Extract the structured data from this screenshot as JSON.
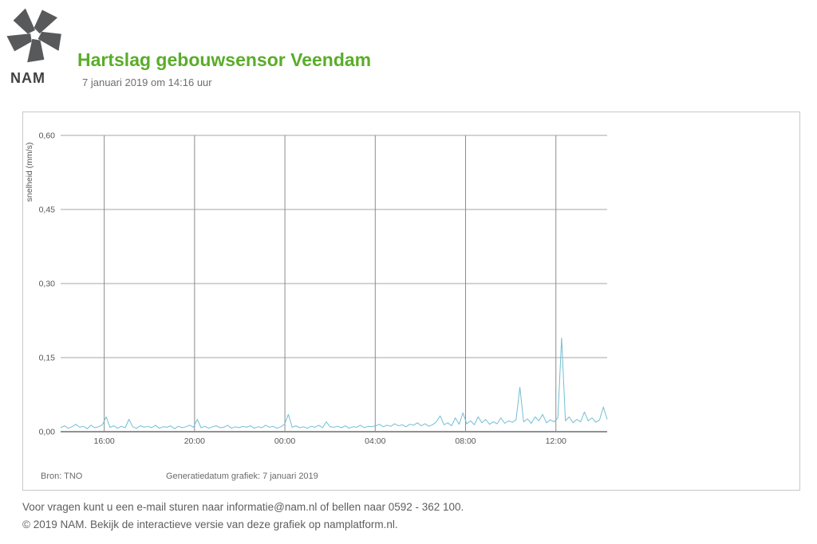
{
  "header": {
    "logo_text": "NAM",
    "title": "Hartslag gebouwsensor Veendam",
    "subtitle": "7 januari 2019 om 14:16 uur"
  },
  "chart_footer": {
    "source": "Bron: TNO",
    "generated": "Generatiedatum grafiek: 7 januari 2019"
  },
  "page_footer": {
    "line1": "Voor vragen kunt u een e-mail sturen naar informatie@nam.nl of bellen naar 0592 - 362 100.",
    "line2": "© 2019 NAM. Bekijk de interactieve versie van deze grafiek op namplatform.nl."
  },
  "colors": {
    "accent_green": "#5aad29",
    "line": "#72bfd4",
    "grid_horizontal": "#a6a6a6",
    "grid_vertical": "#8c8c8c",
    "axis": "#6e6e6e",
    "tick_text": "#555555",
    "logo_gray": "#58595b"
  },
  "chart_data": {
    "type": "line",
    "title": "",
    "xlabel": "",
    "ylabel": "snelheid (mm/s)",
    "ylim": [
      0,
      0.6
    ],
    "yticks": [
      0.0,
      0.15,
      0.3,
      0.45,
      0.6
    ],
    "ytick_labels": [
      "0,00",
      "0,15",
      "0,30",
      "0,45",
      "0,60"
    ],
    "grid": true,
    "legend": "none",
    "x_start": 0,
    "x_end": 24.2,
    "x_unit": "hours",
    "xticks": [
      {
        "pos": 1.93,
        "label": "16:00"
      },
      {
        "pos": 5.93,
        "label": "20:00"
      },
      {
        "pos": 9.93,
        "label": "00:00"
      },
      {
        "pos": 13.93,
        "label": "04:00"
      },
      {
        "pos": 17.93,
        "label": "08:00"
      },
      {
        "pos": 21.93,
        "label": "12:00"
      }
    ],
    "series": [
      {
        "name": "snelheid",
        "color": "#72bfd4",
        "values": [
          0.008,
          0.012,
          0.007,
          0.01,
          0.015,
          0.009,
          0.011,
          0.006,
          0.013,
          0.008,
          0.01,
          0.014,
          0.03,
          0.009,
          0.012,
          0.007,
          0.011,
          0.008,
          0.025,
          0.01,
          0.007,
          0.012,
          0.009,
          0.011,
          0.008,
          0.013,
          0.007,
          0.01,
          0.009,
          0.012,
          0.006,
          0.011,
          0.008,
          0.01,
          0.013,
          0.009,
          0.025,
          0.008,
          0.011,
          0.007,
          0.01,
          0.012,
          0.008,
          0.009,
          0.013,
          0.007,
          0.01,
          0.008,
          0.011,
          0.009,
          0.012,
          0.007,
          0.01,
          0.008,
          0.013,
          0.009,
          0.011,
          0.007,
          0.01,
          0.015,
          0.035,
          0.009,
          0.012,
          0.008,
          0.01,
          0.007,
          0.011,
          0.009,
          0.013,
          0.008,
          0.02,
          0.01,
          0.009,
          0.011,
          0.008,
          0.012,
          0.007,
          0.01,
          0.009,
          0.013,
          0.008,
          0.011,
          0.01,
          0.012,
          0.015,
          0.01,
          0.013,
          0.011,
          0.016,
          0.012,
          0.014,
          0.01,
          0.015,
          0.013,
          0.018,
          0.012,
          0.016,
          0.011,
          0.014,
          0.02,
          0.032,
          0.014,
          0.018,
          0.012,
          0.028,
          0.015,
          0.038,
          0.016,
          0.022,
          0.014,
          0.03,
          0.018,
          0.025,
          0.015,
          0.02,
          0.016,
          0.028,
          0.017,
          0.022,
          0.019,
          0.024,
          0.09,
          0.02,
          0.026,
          0.017,
          0.03,
          0.022,
          0.035,
          0.018,
          0.024,
          0.02,
          0.028,
          0.19,
          0.022,
          0.03,
          0.018,
          0.025,
          0.02,
          0.04,
          0.022,
          0.028,
          0.019,
          0.024,
          0.05,
          0.025
        ]
      }
    ],
    "annotations": [
      {
        "time_label": "~10:20",
        "peak": 0.09
      },
      {
        "time_label": "~12:10",
        "peak": 0.19
      }
    ]
  }
}
